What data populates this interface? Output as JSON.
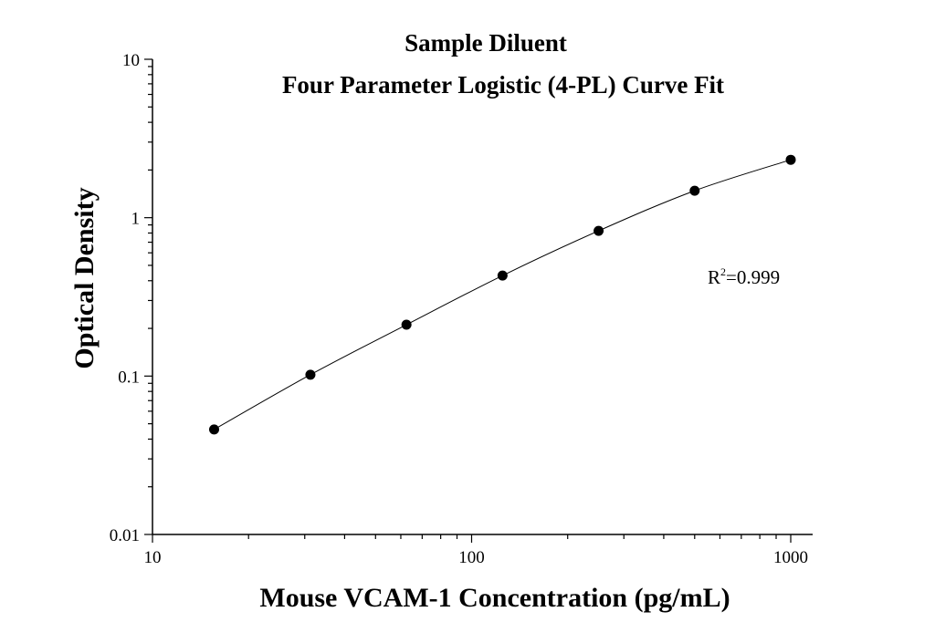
{
  "chart_data": {
    "type": "scatter",
    "title": "Sample Diluent",
    "subtitle": "Four Parameter Logistic (4-PL) Curve Fit",
    "xlabel": "Mouse VCAM-1 Concentration (pg/mL)",
    "ylabel": "Optical Density",
    "xscale": "log",
    "yscale": "log",
    "xlim": [
      10,
      1000
    ],
    "ylim": [
      0.01,
      10
    ],
    "xticks": [
      "10",
      "100",
      "1000"
    ],
    "yticks": [
      "0.01",
      "0.1",
      "1",
      "10"
    ],
    "grid": false,
    "fit_line": true,
    "annotation": {
      "prefix": "R",
      "sup": "2",
      "text": "=0.999"
    },
    "colors": {
      "points": "#000000",
      "line": "#000000"
    },
    "x": [
      15.6,
      31.25,
      62.5,
      125,
      250,
      500,
      1000
    ],
    "y": [
      0.046,
      0.102,
      0.211,
      0.431,
      0.826,
      1.48,
      2.32
    ]
  }
}
